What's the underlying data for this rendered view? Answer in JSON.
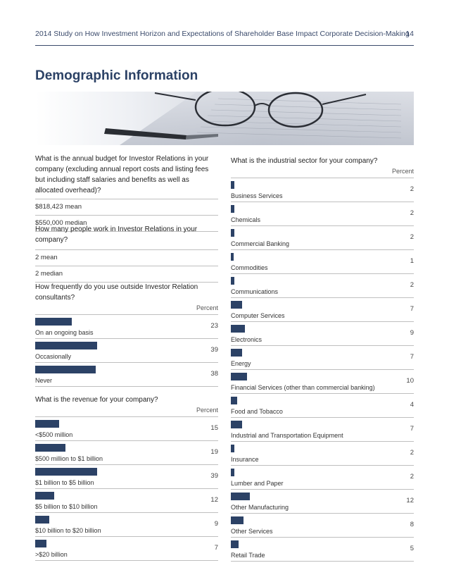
{
  "header": {
    "title": "2014 Study on How Investment Horizon and Expectations of Shareholder Base Impact Corporate Decision-Making",
    "page": "14"
  },
  "section_title": "Demographic Information",
  "budget": {
    "question": "What is the annual budget for Investor Relations in your company (excluding annual report costs and listing fees but including staff salaries and benefits as well as allocated overhead)?",
    "rows": [
      "$818,423 mean",
      "$550,000 median"
    ]
  },
  "people": {
    "question": "How many people work in Investor Relations in your company?",
    "rows": [
      "2 mean",
      "2 median"
    ]
  },
  "chart_data": [
    {
      "type": "bar",
      "title": "How frequently do you use outside Investor Relation consultants?",
      "ylabel": "Percent",
      "categories": [
        "On an ongoing basis",
        "Occasionally",
        "Never"
      ],
      "values": [
        23,
        39,
        38
      ]
    },
    {
      "type": "bar",
      "title": "What is the revenue for your company?",
      "ylabel": "Percent",
      "categories": [
        "<$500 million",
        "$500 million to $1 billion",
        "$1 billion to $5 billion",
        "$5 billion to $10 billion",
        "$10 billion to $20 billion",
        ">$20 billion"
      ],
      "values": [
        15,
        19,
        39,
        12,
        9,
        7
      ]
    },
    {
      "type": "bar",
      "title": "What is the industrial sector for your company?",
      "ylabel": "Percent",
      "categories": [
        "Business Services",
        "Chemicals",
        "Commercial Banking",
        "Commodities",
        "Communications",
        "Computer Services",
        "Electronics",
        "Energy",
        "Financial Services (other than commercial banking)",
        "Food and Tobacco",
        "Industrial and Transportation Equipment",
        "Insurance",
        "Lumber and Paper",
        "Other Manufacturing",
        "Other Services",
        "Retail Trade"
      ],
      "values": [
        2,
        2,
        2,
        1,
        2,
        7,
        9,
        7,
        10,
        4,
        7,
        2,
        2,
        12,
        8,
        5
      ]
    }
  ],
  "colors": {
    "bar": "#2c4266",
    "rule": "#bfbfbf",
    "title": "#2c4266"
  }
}
